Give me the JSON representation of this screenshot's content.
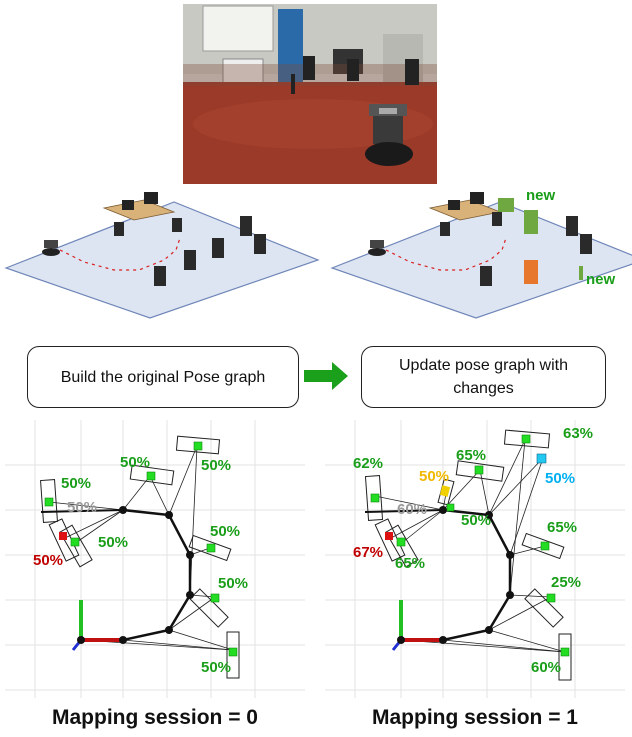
{
  "steps": {
    "left": "Build the original Pose graph",
    "right": "Update pose graph with changes"
  },
  "scene_labels": {
    "new_1": "new",
    "new_2": "new",
    "new_3": "new"
  },
  "sessions": [
    {
      "caption": "Mapping session = 0",
      "labels": [
        {
          "id": "top",
          "text": "50%",
          "color": "#1a9e1a"
        },
        {
          "id": "top-right",
          "text": "50%",
          "color": "#1a9e1a"
        },
        {
          "id": "left-top",
          "text": "50%",
          "color": "#1a9e1a"
        },
        {
          "id": "left-grey",
          "text": "50%",
          "color": "#999999"
        },
        {
          "id": "left-mid",
          "text": "50%",
          "color": "#1a9e1a"
        },
        {
          "id": "left-red",
          "text": "50%",
          "color": "#c00000"
        },
        {
          "id": "right-mid",
          "text": "50%",
          "color": "#1a9e1a"
        },
        {
          "id": "right-low",
          "text": "50%",
          "color": "#1a9e1a"
        },
        {
          "id": "bottom",
          "text": "50%",
          "color": "#1a9e1a"
        }
      ]
    },
    {
      "caption": "Mapping session = 1",
      "labels": [
        {
          "id": "top-right",
          "text": "63%",
          "color": "#1a9e1a"
        },
        {
          "id": "cyan",
          "text": "50%",
          "color": "#00b0f0"
        },
        {
          "id": "top",
          "text": "65%",
          "color": "#1a9e1a"
        },
        {
          "id": "yellow",
          "text": "50%",
          "color": "#f0b800"
        },
        {
          "id": "left-top",
          "text": "62%",
          "color": "#1a9e1a"
        },
        {
          "id": "left-grey",
          "text": "60%",
          "color": "#999999"
        },
        {
          "id": "center",
          "text": "50%",
          "color": "#1a9e1a"
        },
        {
          "id": "left-red",
          "text": "67%",
          "color": "#c00000"
        },
        {
          "id": "left-mid",
          "text": "65%",
          "color": "#1a9e1a"
        },
        {
          "id": "right-mid",
          "text": "65%",
          "color": "#1a9e1a"
        },
        {
          "id": "right-low",
          "text": "25%",
          "color": "#1a9e1a"
        },
        {
          "id": "bottom",
          "text": "60%",
          "color": "#1a9e1a"
        }
      ]
    }
  ],
  "colors": {
    "floor": "#dde4f2",
    "floor_edge": "#6f86b8",
    "photo_floor": "#9b3a28",
    "green_arrow": "#1aa01a",
    "trajectory": "#d92020",
    "new_object": "#6fa840",
    "new_chair_orange": "#e8772e"
  }
}
